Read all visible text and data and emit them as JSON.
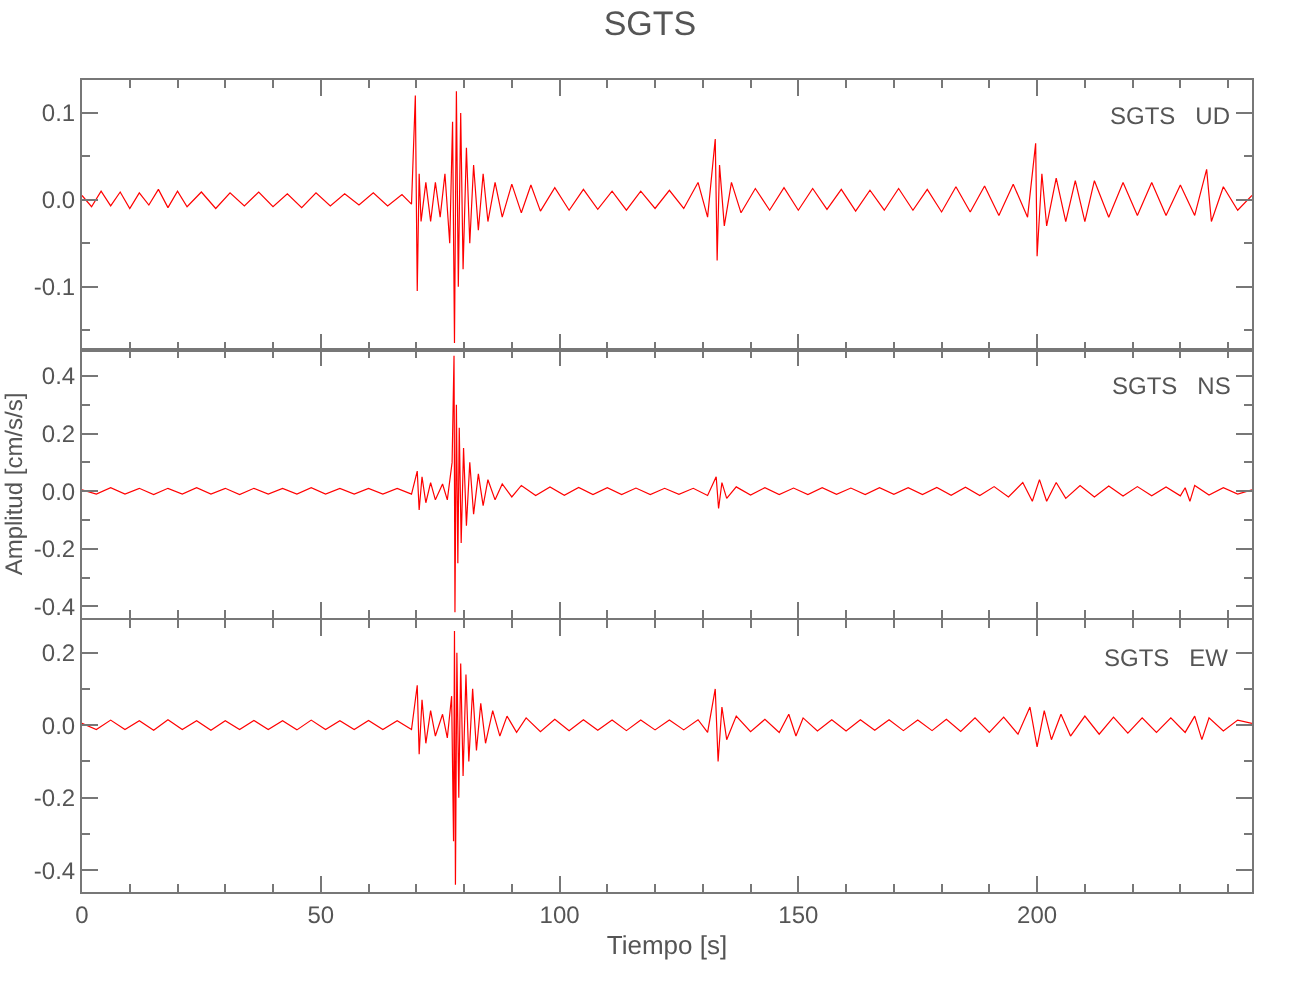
{
  "chart_data": [
    {
      "type": "line",
      "title": "SGTS",
      "annotations": [
        "SGTS   UD"
      ],
      "tick_labels": "y",
      "grid": false,
      "marker": "none",
      "line_style": "solid",
      "xlim": [
        0,
        245
      ],
      "xticks": [
        0,
        {
          "value": 10,
          "label": null
        },
        {
          "value": 20,
          "label": null
        },
        {
          "value": 30,
          "label": null
        },
        {
          "value": 40,
          "label": null
        },
        50,
        {
          "value": 60,
          "label": null
        },
        {
          "value": 70,
          "label": null
        },
        {
          "value": 80,
          "label": null
        },
        {
          "value": 90,
          "label": null
        },
        100,
        {
          "value": 110,
          "label": null
        },
        {
          "value": 120,
          "label": null
        },
        {
          "value": 130,
          "label": null
        },
        {
          "value": 140,
          "label": null
        },
        150,
        {
          "value": 160,
          "label": null
        },
        {
          "value": 170,
          "label": null
        },
        {
          "value": 180,
          "label": null
        },
        {
          "value": 190,
          "label": null
        },
        200,
        {
          "value": 210,
          "label": null
        },
        {
          "value": 220,
          "label": null
        },
        {
          "value": 230,
          "label": null
        },
        {
          "value": 240,
          "label": null
        }
      ],
      "ylim": [
        -0.173,
        0.138
      ],
      "yticks": [
        {
          "value": -0.15,
          "label": null
        },
        -0.1,
        {
          "value": -0.05,
          "label": null
        },
        {
          "value": 0,
          "label": "0.0"
        },
        {
          "value": 0.05,
          "label": null
        },
        0.1
      ],
      "series": [
        {
          "color": "#ff0000",
          "x": [
            0,
            2,
            4,
            6,
            8,
            10,
            12,
            14,
            16,
            18,
            20,
            22,
            25,
            28,
            31,
            34,
            37,
            40,
            43,
            46,
            49,
            52,
            55,
            58,
            61,
            64,
            67,
            69,
            69.8,
            70.2,
            70.6,
            71,
            72,
            73,
            74,
            75,
            76,
            77,
            77.6,
            78,
            78.4,
            78.8,
            79.3,
            79.8,
            80.5,
            81.2,
            82,
            83,
            84,
            85,
            86.5,
            88,
            90,
            92,
            94,
            96,
            99,
            102,
            105,
            108,
            111,
            114,
            117,
            120,
            123,
            126,
            129,
            131,
            132.6,
            133,
            133.5,
            134.5,
            136,
            138,
            141,
            144,
            147,
            150,
            153,
            156,
            159,
            162,
            165,
            168,
            171,
            174,
            177,
            180,
            183,
            186,
            189,
            192,
            195,
            198,
            199.7,
            200,
            201,
            202,
            204,
            206,
            208,
            210,
            212,
            215,
            218,
            221,
            224,
            227,
            230,
            233,
            235.5,
            236.5,
            239,
            242,
            245
          ],
          "values": [
            0.005,
            -0.008,
            0.01,
            -0.007,
            0.009,
            -0.01,
            0.008,
            -0.006,
            0.012,
            -0.009,
            0.01,
            -0.008,
            0.009,
            -0.01,
            0.008,
            -0.007,
            0.009,
            -0.008,
            0.007,
            -0.009,
            0.008,
            -0.007,
            0.007,
            -0.006,
            0.008,
            -0.007,
            0.006,
            -0.005,
            0.12,
            -0.105,
            0.03,
            -0.025,
            0.02,
            -0.025,
            0.02,
            -0.02,
            0.03,
            -0.05,
            0.09,
            -0.165,
            0.125,
            -0.1,
            0.1,
            -0.08,
            0.06,
            -0.05,
            0.04,
            -0.035,
            0.03,
            -0.025,
            0.02,
            -0.02,
            0.018,
            -0.015,
            0.017,
            -0.013,
            0.014,
            -0.012,
            0.012,
            -0.011,
            0.01,
            -0.012,
            0.01,
            -0.01,
            0.011,
            -0.01,
            0.02,
            -0.02,
            0.07,
            -0.07,
            0.04,
            -0.03,
            0.02,
            -0.015,
            0.013,
            -0.012,
            0.014,
            -0.012,
            0.013,
            -0.011,
            0.012,
            -0.013,
            0.011,
            -0.012,
            0.013,
            -0.012,
            0.012,
            -0.014,
            0.015,
            -0.014,
            0.016,
            -0.018,
            0.018,
            -0.02,
            0.065,
            -0.065,
            0.03,
            -0.03,
            0.025,
            -0.025,
            0.022,
            -0.025,
            0.022,
            -0.02,
            0.02,
            -0.018,
            0.02,
            -0.018,
            0.017,
            -0.018,
            0.035,
            -0.025,
            0.015,
            -0.012,
            0.005
          ]
        }
      ]
    },
    {
      "type": "line",
      "ylabel": "Amplitud [cm/s/s]",
      "annotations": [
        "SGTS   NS"
      ],
      "tick_labels": "y",
      "grid": false,
      "marker": "none",
      "line_style": "solid",
      "xlim": [
        0,
        245
      ],
      "xticks": [
        0,
        {
          "value": 10,
          "label": null
        },
        {
          "value": 20,
          "label": null
        },
        {
          "value": 30,
          "label": null
        },
        {
          "value": 40,
          "label": null
        },
        50,
        {
          "value": 60,
          "label": null
        },
        {
          "value": 70,
          "label": null
        },
        {
          "value": 80,
          "label": null
        },
        {
          "value": 90,
          "label": null
        },
        100,
        {
          "value": 110,
          "label": null
        },
        {
          "value": 120,
          "label": null
        },
        {
          "value": 130,
          "label": null
        },
        {
          "value": 140,
          "label": null
        },
        150,
        {
          "value": 160,
          "label": null
        },
        {
          "value": 170,
          "label": null
        },
        {
          "value": 180,
          "label": null
        },
        {
          "value": 190,
          "label": null
        },
        200,
        {
          "value": 210,
          "label": null
        },
        {
          "value": 220,
          "label": null
        },
        {
          "value": 230,
          "label": null
        },
        {
          "value": 240,
          "label": null
        }
      ],
      "ylim": [
        -0.44,
        0.49
      ],
      "yticks": [
        -0.4,
        {
          "value": -0.3,
          "label": null
        },
        -0.2,
        {
          "value": -0.1,
          "label": null
        },
        {
          "value": 0,
          "label": "0.0"
        },
        {
          "value": 0.1,
          "label": null
        },
        0.2,
        {
          "value": 0.3,
          "label": null
        },
        0.4
      ],
      "series": [
        {
          "color": "#ff0000",
          "x": [
            0,
            3,
            6,
            9,
            12,
            15,
            18,
            21,
            24,
            27,
            30,
            33,
            36,
            39,
            42,
            45,
            48,
            51,
            54,
            57,
            60,
            63,
            66,
            69,
            70.2,
            70.6,
            71.2,
            72,
            73,
            74,
            75.5,
            76.5,
            77.5,
            77.9,
            78.1,
            78.4,
            78.7,
            79,
            79.4,
            79.9,
            80.5,
            81.2,
            82,
            83,
            84,
            85,
            86.5,
            88,
            90,
            92,
            95,
            98,
            101,
            104,
            107,
            110,
            113,
            116,
            119,
            122,
            125,
            128,
            131,
            132.8,
            133.3,
            134,
            135,
            137,
            140,
            143,
            146,
            149,
            152,
            155,
            158,
            161,
            164,
            167,
            170,
            173,
            176,
            179,
            182,
            185,
            188,
            191,
            194,
            197,
            199,
            200.5,
            202,
            204,
            206,
            209,
            212,
            215,
            218,
            221,
            224,
            227,
            230,
            231,
            232,
            233,
            236,
            239,
            242,
            245
          ],
          "values": [
            0.005,
            -0.01,
            0.012,
            -0.01,
            0.01,
            -0.012,
            0.01,
            -0.01,
            0.012,
            -0.01,
            0.01,
            -0.012,
            0.01,
            -0.01,
            0.01,
            -0.01,
            0.012,
            -0.01,
            0.01,
            -0.01,
            0.01,
            -0.01,
            0.01,
            -0.01,
            0.07,
            -0.065,
            0.05,
            -0.04,
            0.03,
            -0.03,
            0.025,
            -0.03,
            0.1,
            0.47,
            -0.42,
            0.3,
            -0.25,
            0.22,
            -0.18,
            0.15,
            -0.12,
            0.1,
            -0.08,
            0.06,
            -0.05,
            0.04,
            -0.03,
            0.025,
            -0.02,
            0.02,
            -0.015,
            0.015,
            -0.014,
            0.013,
            -0.012,
            0.012,
            -0.012,
            0.011,
            -0.012,
            0.01,
            -0.011,
            0.01,
            -0.015,
            0.05,
            -0.06,
            0.03,
            -0.025,
            0.015,
            -0.013,
            0.012,
            -0.012,
            0.011,
            -0.012,
            0.012,
            -0.011,
            0.011,
            -0.012,
            0.012,
            -0.011,
            0.012,
            -0.012,
            0.013,
            -0.014,
            0.014,
            -0.015,
            0.016,
            -0.02,
            0.03,
            -0.035,
            0.04,
            -0.035,
            0.03,
            -0.025,
            0.02,
            -0.02,
            0.018,
            -0.017,
            0.016,
            -0.016,
            0.015,
            -0.016,
            0.012,
            -0.035,
            0.02,
            -0.013,
            0.012,
            -0.01,
            0.005
          ]
        }
      ]
    },
    {
      "type": "line",
      "xlabel": "Tiempo [s]",
      "annotations": [
        "SGTS   EW"
      ],
      "grid": false,
      "marker": "none",
      "line_style": "solid",
      "xlim": [
        0,
        245
      ],
      "xticks": [
        0,
        {
          "value": 10,
          "label": null
        },
        {
          "value": 20,
          "label": null
        },
        {
          "value": 30,
          "label": null
        },
        {
          "value": 40,
          "label": null
        },
        50,
        {
          "value": 60,
          "label": null
        },
        {
          "value": 70,
          "label": null
        },
        {
          "value": 80,
          "label": null
        },
        {
          "value": 90,
          "label": null
        },
        100,
        {
          "value": 110,
          "label": null
        },
        {
          "value": 120,
          "label": null
        },
        {
          "value": 130,
          "label": null
        },
        {
          "value": 140,
          "label": null
        },
        150,
        {
          "value": 160,
          "label": null
        },
        {
          "value": 170,
          "label": null
        },
        {
          "value": 180,
          "label": null
        },
        {
          "value": 190,
          "label": null
        },
        200,
        {
          "value": 210,
          "label": null
        },
        {
          "value": 220,
          "label": null
        },
        {
          "value": 230,
          "label": null
        },
        {
          "value": 240,
          "label": null
        }
      ],
      "ylim": [
        -0.46,
        0.29
      ],
      "yticks": [
        -0.4,
        {
          "value": -0.3,
          "label": null
        },
        -0.2,
        {
          "value": -0.1,
          "label": null
        },
        {
          "value": 0,
          "label": "0.0"
        },
        {
          "value": 0.1,
          "label": null
        },
        0.2
      ],
      "series": [
        {
          "color": "#ff0000",
          "x": [
            0,
            3,
            6,
            9,
            12,
            15,
            18,
            21,
            24,
            27,
            30,
            33,
            36,
            39,
            42,
            45,
            48,
            51,
            54,
            57,
            60,
            63,
            66,
            69,
            70.2,
            70.6,
            71.2,
            72,
            73,
            74,
            75.5,
            76.5,
            77.4,
            77.8,
            78,
            78.2,
            78.5,
            78.9,
            79.3,
            79.8,
            80.4,
            81,
            81.8,
            82.6,
            83.5,
            84.5,
            86,
            87.5,
            89,
            91,
            93,
            96,
            99,
            102,
            105,
            108,
            111,
            114,
            117,
            120,
            123,
            126,
            129,
            131,
            132.6,
            133.2,
            134,
            135,
            137,
            140,
            143,
            146,
            148,
            149.5,
            151,
            154,
            157,
            160,
            163,
            166,
            169,
            172,
            175,
            178,
            181,
            184,
            187,
            190,
            193,
            196,
            198.5,
            200,
            201.5,
            203,
            205,
            207,
            210,
            213,
            216,
            219,
            222,
            225,
            228,
            231,
            233,
            234.5,
            236,
            239,
            242,
            245
          ],
          "values": [
            0.005,
            -0.012,
            0.014,
            -0.012,
            0.012,
            -0.014,
            0.015,
            -0.012,
            0.012,
            -0.014,
            0.012,
            -0.012,
            0.013,
            -0.012,
            0.012,
            -0.013,
            0.014,
            -0.012,
            0.012,
            -0.012,
            0.013,
            -0.012,
            0.012,
            -0.012,
            0.11,
            -0.08,
            0.07,
            -0.05,
            0.04,
            -0.03,
            0.03,
            -0.035,
            0.08,
            -0.32,
            0.26,
            -0.44,
            0.2,
            -0.2,
            0.17,
            -0.14,
            0.14,
            -0.1,
            0.1,
            -0.07,
            0.06,
            -0.05,
            0.04,
            -0.03,
            0.025,
            -0.02,
            0.02,
            -0.018,
            0.016,
            -0.015,
            0.015,
            -0.014,
            0.014,
            -0.015,
            0.014,
            -0.013,
            0.014,
            -0.013,
            0.015,
            -0.02,
            0.1,
            -0.1,
            0.05,
            -0.04,
            0.025,
            -0.018,
            0.016,
            -0.02,
            0.03,
            -0.03,
            0.02,
            -0.016,
            0.015,
            -0.016,
            0.015,
            -0.014,
            0.015,
            -0.015,
            0.014,
            -0.015,
            0.016,
            -0.017,
            0.02,
            -0.02,
            0.022,
            -0.025,
            0.05,
            -0.06,
            0.04,
            -0.04,
            0.03,
            -0.03,
            0.025,
            -0.025,
            0.022,
            -0.022,
            0.02,
            -0.02,
            0.02,
            -0.02,
            0.025,
            -0.04,
            0.02,
            -0.016,
            0.014,
            0.005
          ]
        }
      ]
    }
  ]
}
